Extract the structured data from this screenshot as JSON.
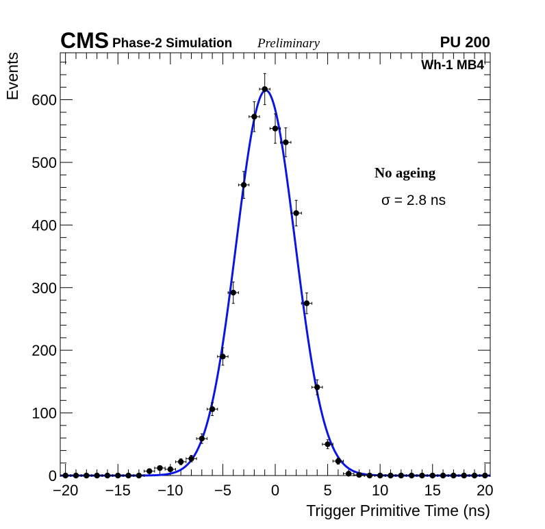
{
  "chart_data": {
    "type": "scatter",
    "header": {
      "experiment": "CMS",
      "subtitle": "Phase-2 Simulation",
      "status": "Preliminary",
      "pileup": "PU 200",
      "chamber": "Wh-1 MB4"
    },
    "xlabel": "Trigger Primitive Time (ns)",
    "ylabel": "Events",
    "xlim": [
      -20.5,
      20.5
    ],
    "ylim": [
      0,
      675
    ],
    "x_ticks": [
      -20,
      -15,
      -10,
      -5,
      0,
      5,
      10,
      15,
      20
    ],
    "x_tick_labels": [
      "−20",
      "−15",
      "−10",
      "−5",
      "0",
      "5",
      "10",
      "15",
      "20"
    ],
    "y_ticks": [
      0,
      100,
      200,
      300,
      400,
      500,
      600
    ],
    "y_tick_labels": [
      "0",
      "100",
      "200",
      "300",
      "400",
      "500",
      "600"
    ],
    "grid": false,
    "annotations": {
      "condition": "No ageing",
      "sigma_text": "σ = 2.8 ns"
    },
    "series": [
      {
        "name": "Simulation",
        "style": "points-with-errors",
        "color": "#000000",
        "x": [
          -20,
          -19,
          -18,
          -17,
          -16,
          -15,
          -14,
          -13,
          -12,
          -11,
          -10,
          -9,
          -8,
          -7,
          -6,
          -5,
          -4,
          -3,
          -2,
          -1,
          0,
          1,
          2,
          3,
          4,
          5,
          6,
          7,
          8,
          9,
          10,
          11,
          12,
          13,
          14,
          15,
          16,
          17,
          18,
          19,
          20
        ],
        "values": [
          0,
          0,
          0,
          0,
          0,
          0,
          0,
          0,
          7,
          12,
          10,
          22,
          27,
          59,
          106,
          190,
          292,
          464,
          573,
          617,
          554,
          532,
          419,
          275,
          141,
          50,
          23,
          3,
          1,
          0,
          0,
          0,
          0,
          0,
          0,
          0,
          0,
          0,
          0,
          0,
          0
        ],
        "errors": [
          0,
          0,
          0,
          0,
          0,
          0,
          0,
          0,
          2.6,
          3.5,
          3.2,
          4.7,
          5.2,
          7.7,
          10.3,
          13.8,
          17.1,
          21.5,
          23.9,
          24.8,
          23.5,
          23.1,
          20.5,
          16.6,
          11.9,
          7.1,
          4.8,
          1.7,
          1,
          0,
          0,
          0,
          0,
          0,
          0,
          0,
          0,
          0,
          0,
          0,
          0
        ]
      },
      {
        "name": "Gaussian fit",
        "style": "line",
        "color": "#0a14e6",
        "function": "gaussian",
        "amplitude": 615,
        "mean": -0.9,
        "sigma": 2.8
      }
    ]
  }
}
